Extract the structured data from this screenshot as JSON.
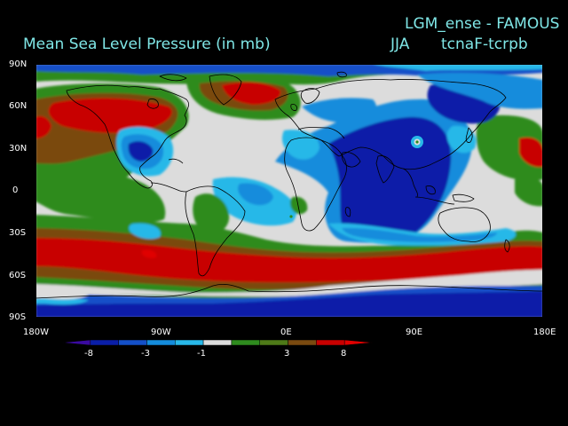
{
  "header": {
    "title": "Mean Sea Level Pressure (in mb)",
    "experiment": "LGM_ense - FAMOUS",
    "season": "JJA",
    "difference": "tcnaF-tcrpb"
  },
  "map": {
    "lat_labels": [
      "90N",
      "60N",
      "30N",
      "0",
      "30S",
      "60S",
      "90S"
    ],
    "lon_labels": [
      "180W",
      "90W",
      "0E",
      "90E",
      "180E"
    ]
  },
  "legend": {
    "labels": [
      "-8",
      "-3",
      "-1",
      "3",
      "8"
    ],
    "colors": [
      "#3a0aa0",
      "#0a1ea8",
      "#1450c8",
      "#148cdc",
      "#28b8e8",
      "#dcdcdc",
      "#2e8b1e",
      "#4e7a18",
      "#7a4a10",
      "#c80000",
      "#e00000"
    ]
  },
  "colors": {
    "title_text": "#7fe6e6",
    "background": "#000000",
    "coast": "#000000"
  }
}
